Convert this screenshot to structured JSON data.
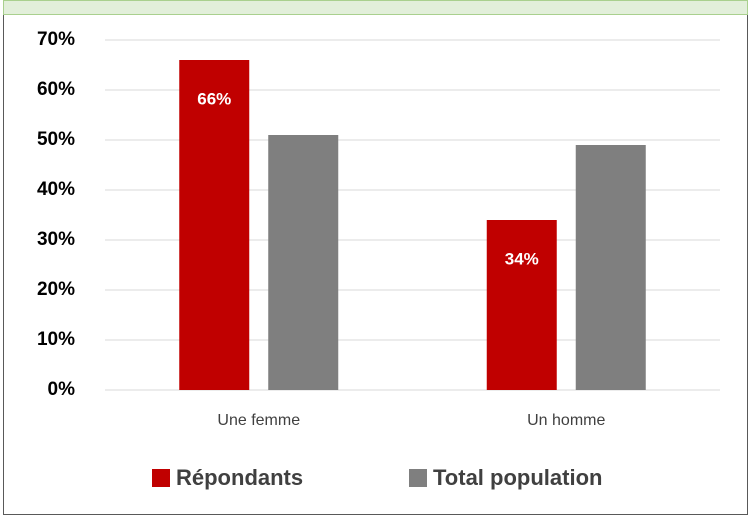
{
  "chart_data": {
    "type": "bar",
    "categories": [
      "Une femme",
      "Un homme"
    ],
    "series": [
      {
        "name": "Répondants",
        "color": "#c00000",
        "values": [
          66,
          34
        ],
        "value_labels": [
          "66%",
          "34%"
        ]
      },
      {
        "name": "Total population",
        "color": "#7f7f7f",
        "values": [
          51,
          49
        ]
      }
    ],
    "ylim": [
      0,
      70
    ],
    "yticks": [
      {
        "value": 0,
        "label": "0%"
      },
      {
        "value": 10,
        "label": "10%"
      },
      {
        "value": 20,
        "label": "20%"
      },
      {
        "value": 30,
        "label": "30%"
      },
      {
        "value": 40,
        "label": "40%"
      },
      {
        "value": 50,
        "label": "50%"
      },
      {
        "value": 60,
        "label": "60%"
      },
      {
        "value": 70,
        "label": "70%"
      }
    ],
    "grid": true,
    "legend": "bottom"
  }
}
